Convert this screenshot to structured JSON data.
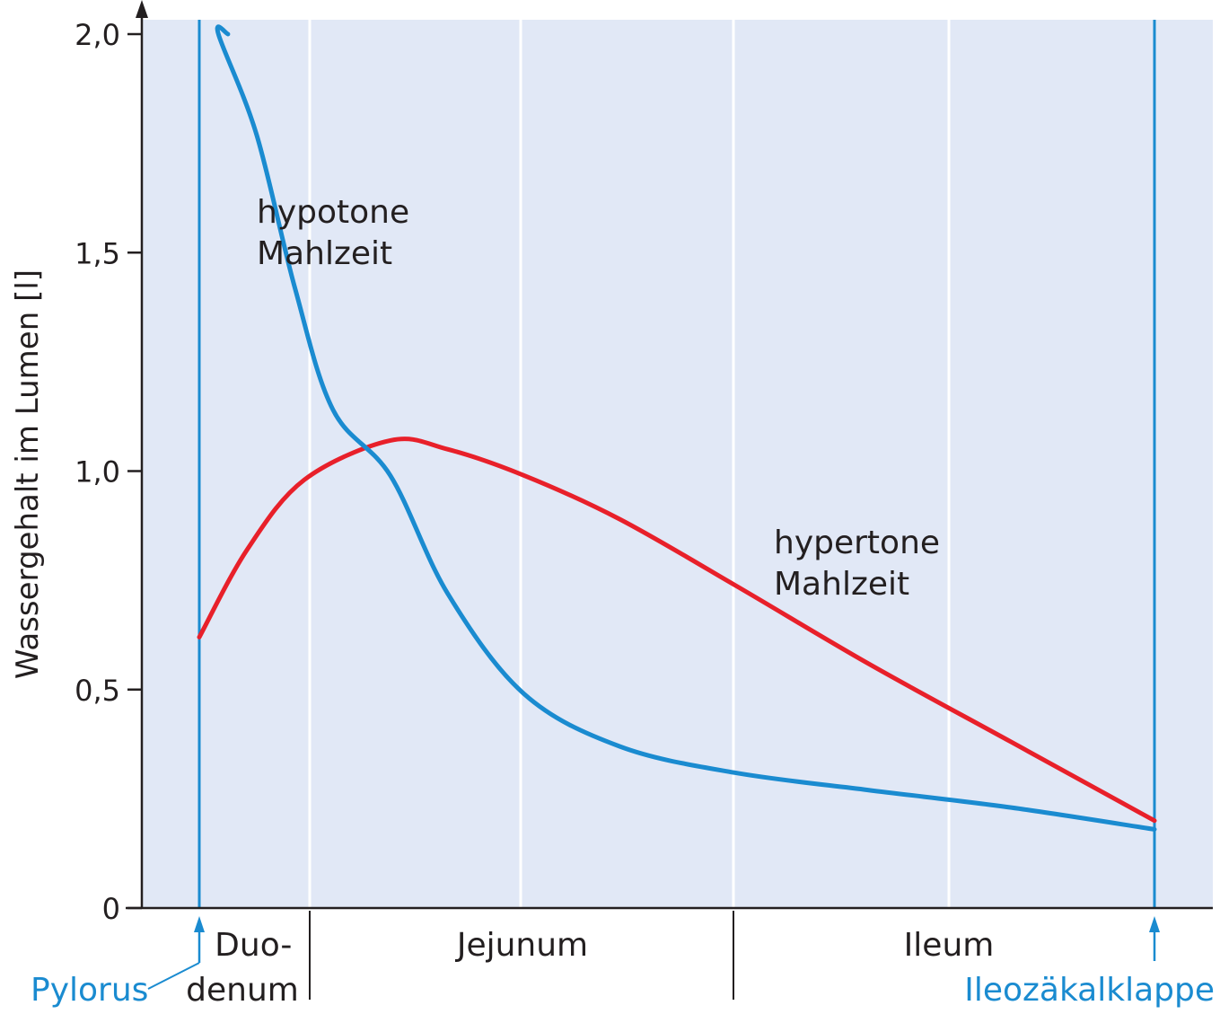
{
  "chart_data": {
    "type": "line",
    "ylabel": "Wassergehalt im Lumen [l]",
    "ylim": [
      0,
      2.0
    ],
    "yticks": [
      {
        "value": 0,
        "label": "0"
      },
      {
        "value": 0.5,
        "label": "0,5"
      },
      {
        "value": 1.0,
        "label": "1,0"
      },
      {
        "value": 1.5,
        "label": "1,5"
      },
      {
        "value": 2.0,
        "label": "2,0"
      }
    ],
    "grid": true,
    "background_color": "#e1e8f6",
    "regions": [
      {
        "label_lines": [
          "Duo-",
          "denum"
        ]
      },
      {
        "label_lines": [
          "Jejunum"
        ]
      },
      {
        "label_lines": [
          "Ileum"
        ]
      }
    ],
    "annotations": {
      "start": "Pylorus",
      "end": "Ileozäkalklappe",
      "color": "#1a8bd0"
    },
    "series": [
      {
        "label_lines": [
          "hypotone",
          "Mahlzeit"
        ],
        "color": "#1a8bd0",
        "x": [
          0.03,
          0.02,
          0.06,
          0.1,
          0.14,
          0.2,
          0.26,
          0.34,
          0.44,
          0.56,
          0.7,
          0.85,
          1.0
        ],
        "y": [
          2.0,
          2.0,
          1.77,
          1.42,
          1.14,
          0.99,
          0.72,
          0.49,
          0.37,
          0.31,
          0.27,
          0.23,
          0.18
        ]
      },
      {
        "label_lines": [
          "hypertone",
          "Mahlzeit"
        ],
        "color": "#e8202a",
        "x": [
          0.0,
          0.05,
          0.11,
          0.2,
          0.26,
          0.34,
          0.44,
          0.56,
          0.7,
          0.85,
          1.0
        ],
        "y": [
          0.62,
          0.82,
          0.98,
          1.07,
          1.05,
          0.99,
          0.89,
          0.74,
          0.56,
          0.38,
          0.2
        ]
      }
    ]
  }
}
